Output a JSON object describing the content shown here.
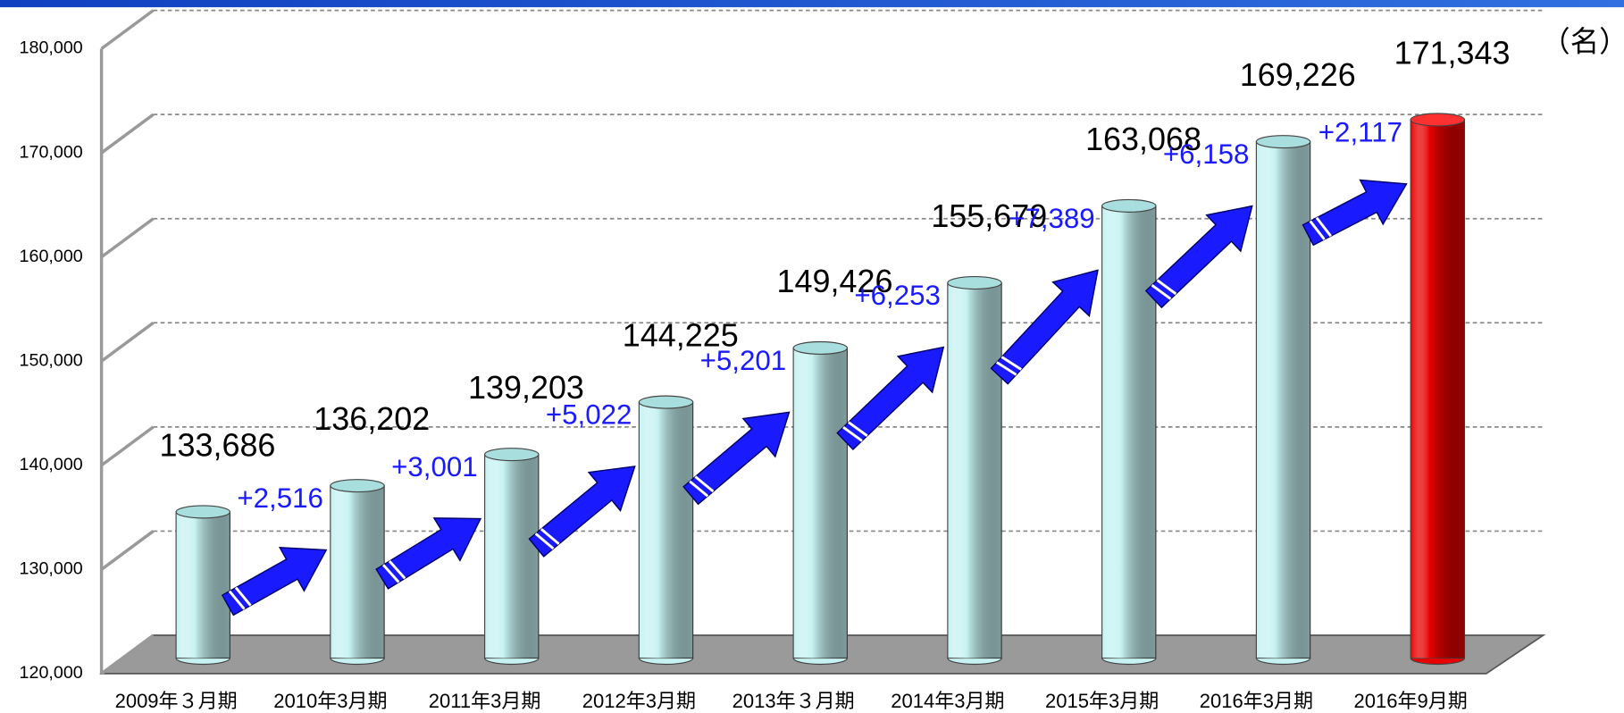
{
  "chart_data": {
    "type": "bar",
    "unit_label": "（名）",
    "categories": [
      "2009年３月期",
      "2010年3月期",
      "2011年3月期",
      "2012年3月期",
      "2013年３月期",
      "2014年3月期",
      "2015年3月期",
      "2016年3月期",
      "2016年9月期"
    ],
    "values": [
      133686,
      136202,
      139203,
      144225,
      149426,
      155679,
      163068,
      169226,
      171343
    ],
    "value_labels": [
      "133,686",
      "136,202",
      "139,203",
      "144,225",
      "149,426",
      "155,679",
      "163,068",
      "169,226",
      "171,343"
    ],
    "colors": [
      "#c6f2f2",
      "#c6f2f2",
      "#c6f2f2",
      "#c6f2f2",
      "#c6f2f2",
      "#c6f2f2",
      "#c6f2f2",
      "#c6f2f2",
      "#e80000"
    ],
    "annotations": [
      "+2,516",
      "+3,001",
      "+5,022",
      "+5,201",
      "+6,253",
      "+7,389",
      "+6,158",
      "+2,117"
    ],
    "ylim": [
      120000,
      180000
    ],
    "yticks": [
      {
        "value": 120000,
        "label": "120,000"
      },
      {
        "value": 130000,
        "label": "130,000"
      },
      {
        "value": 140000,
        "label": "140,000"
      },
      {
        "value": 150000,
        "label": "150,000"
      },
      {
        "value": 160000,
        "label": "160,000"
      },
      {
        "value": 170000,
        "label": "170,000"
      },
      {
        "value": 180000,
        "label": "180,000"
      }
    ],
    "grid": true
  }
}
